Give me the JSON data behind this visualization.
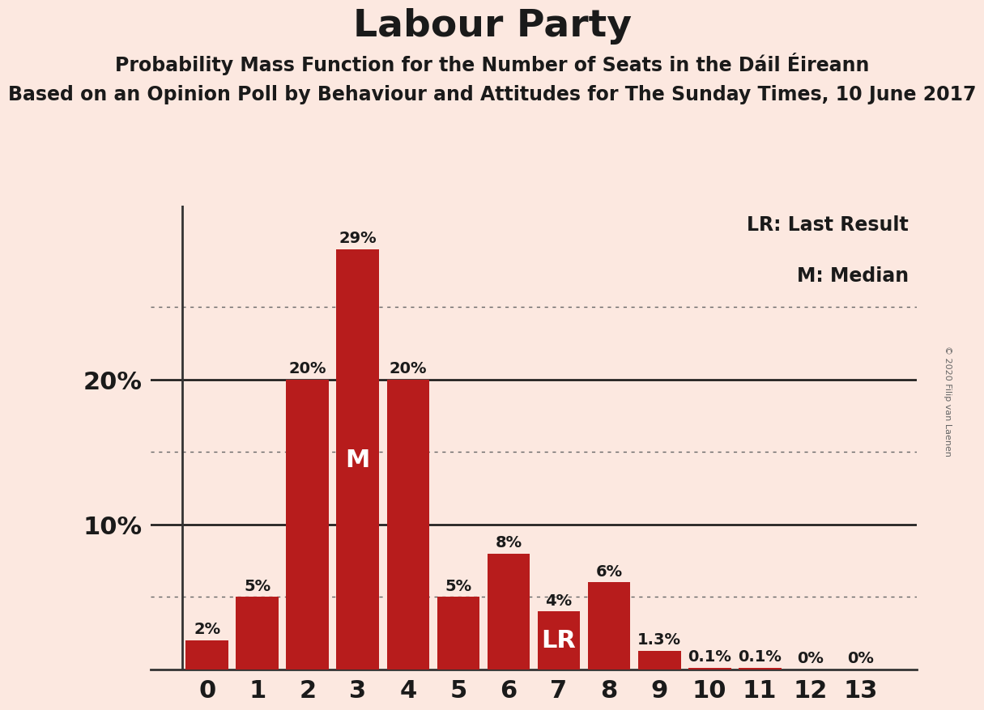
{
  "title": "Labour Party",
  "subtitle1": "Probability Mass Function for the Number of Seats in the Dáil Éireann",
  "subtitle2": "Based on an Opinion Poll by Behaviour and Attitudes for The Sunday Times, 10 June 2017",
  "copyright": "© 2020 Filip van Laenen",
  "categories": [
    0,
    1,
    2,
    3,
    4,
    5,
    6,
    7,
    8,
    9,
    10,
    11,
    12,
    13
  ],
  "values": [
    2,
    5,
    20,
    29,
    20,
    5,
    8,
    4,
    6,
    1.3,
    0.1,
    0.1,
    0,
    0
  ],
  "bar_color": "#b71c1c",
  "background_color": "#fce8e0",
  "label_color_dark": "#1a1a1a",
  "label_color_white": "#ffffff",
  "median_bar": 3,
  "lr_bar": 7,
  "annotation_median": "M",
  "annotation_lr": "LR",
  "legend_lr": "LR: Last Result",
  "legend_m": "M: Median",
  "dotted_lines": [
    5,
    15,
    25
  ],
  "solid_lines": [
    10,
    20
  ],
  "ymax": 32,
  "title_fontsize": 34,
  "subtitle1_fontsize": 17,
  "subtitle2_fontsize": 17,
  "bar_label_fontsize": 14,
  "annotation_fontsize": 22,
  "ytick_fontsize": 22,
  "xtick_fontsize": 22,
  "legend_fontsize": 17,
  "copyright_fontsize": 8
}
